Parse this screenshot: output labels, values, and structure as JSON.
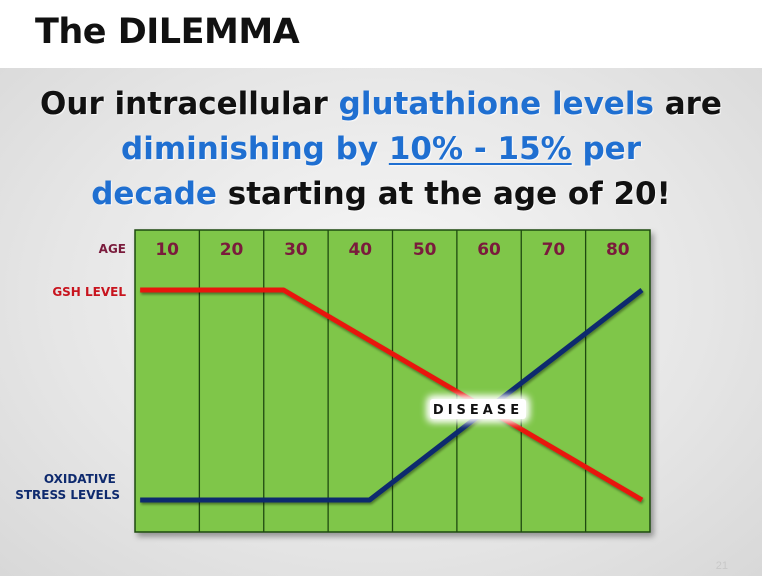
{
  "title": "The DILEMMA",
  "headline": {
    "line1": {
      "a": "Our intracellular ",
      "b": "glutathione levels",
      "c": " are"
    },
    "line2": {
      "a": "diminishing by ",
      "b": "10% - 15%",
      "c": " per"
    },
    "line3": {
      "a": "decade",
      "b": " starting at the age of 20!"
    }
  },
  "chart_data": {
    "type": "line",
    "x_label": "AGE",
    "categories": [
      "10",
      "20",
      "30",
      "40",
      "50",
      "60",
      "70",
      "80"
    ],
    "series": [
      {
        "name": "GSH LEVEL",
        "color": "#e8140f",
        "points": [
          {
            "x": 10,
            "y": 1.0
          },
          {
            "x": 30,
            "y": 1.0
          },
          {
            "x": 80,
            "y": 0.0
          }
        ]
      },
      {
        "name": "OXIDATIVE STRESS LEVELS",
        "color": "#0e2a6e",
        "points": [
          {
            "x": 10,
            "y": 0.0
          },
          {
            "x": 42,
            "y": 0.0
          },
          {
            "x": 80,
            "y": 1.0
          }
        ]
      }
    ],
    "annotation": "DISEASE",
    "colors": {
      "plot_fill": "#7fc64a",
      "grid": "#1e4a10",
      "age_label": "#7a1b3c",
      "gsh_label": "#c8141e",
      "stress_label": "#0e2a6e"
    },
    "grid": true
  },
  "slide_number": "21"
}
